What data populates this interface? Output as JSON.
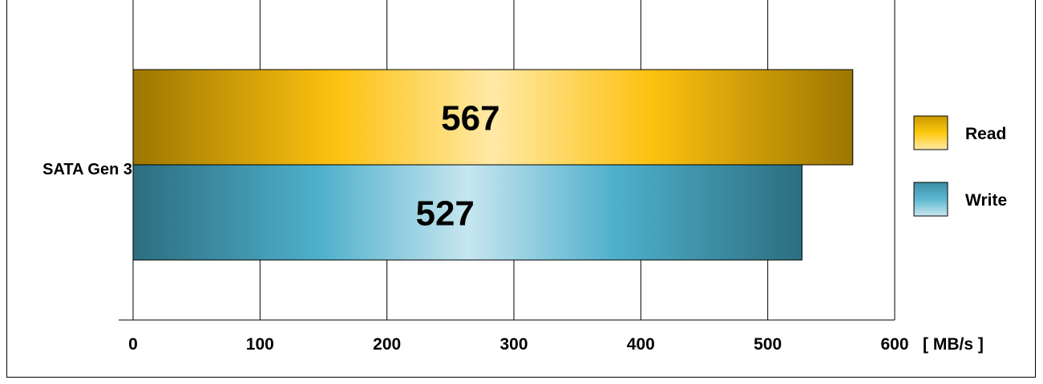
{
  "chart_data": {
    "type": "bar",
    "orientation": "horizontal",
    "categories": [
      "SATA Gen 3"
    ],
    "series": [
      {
        "name": "Read",
        "values": [
          567
        ],
        "color": "#f5b800"
      },
      {
        "name": "Write",
        "values": [
          527
        ],
        "color": "#4aaccb"
      }
    ],
    "data_labels": [
      "567",
      "527"
    ],
    "x_ticks": [
      "0",
      "100",
      "200",
      "300",
      "400",
      "500",
      "600"
    ],
    "x_unit": "[ MB/s ]",
    "xlim": [
      0,
      600
    ],
    "grid": true,
    "legend": "right"
  }
}
